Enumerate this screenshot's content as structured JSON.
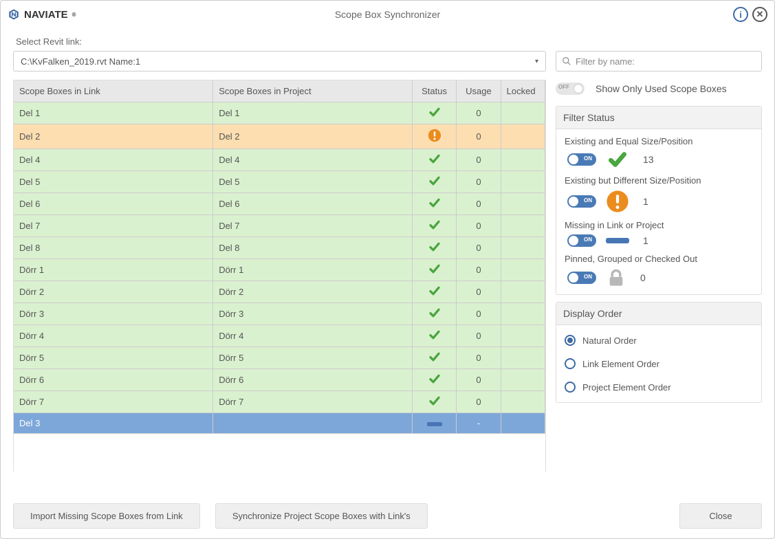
{
  "header": {
    "brand": "NAVIATE",
    "title": "Scope Box Synchronizer"
  },
  "leftPanel": {
    "selectLabel": "Select Revit link:",
    "linkValue": "C:\\KvFalken_2019.rvt Name:1",
    "columns": {
      "link": "Scope Boxes in Link",
      "project": "Scope Boxes in Project",
      "status": "Status",
      "usage": "Usage",
      "locked": "Locked"
    },
    "rows": [
      {
        "link": "Del 1",
        "project": "Del 1",
        "status": "ok",
        "usage": "0",
        "locked": "",
        "cls": "row-ok"
      },
      {
        "link": "Del 2",
        "project": "Del 2",
        "status": "warn",
        "usage": "0",
        "locked": "",
        "cls": "row-warn"
      },
      {
        "link": "Del 4",
        "project": "Del 4",
        "status": "ok",
        "usage": "0",
        "locked": "",
        "cls": "row-ok"
      },
      {
        "link": "Del 5",
        "project": "Del 5",
        "status": "ok",
        "usage": "0",
        "locked": "",
        "cls": "row-ok"
      },
      {
        "link": "Del 6",
        "project": "Del 6",
        "status": "ok",
        "usage": "0",
        "locked": "",
        "cls": "row-ok"
      },
      {
        "link": "Del 7",
        "project": "Del 7",
        "status": "ok",
        "usage": "0",
        "locked": "",
        "cls": "row-ok"
      },
      {
        "link": "Del 8",
        "project": "Del 8",
        "status": "ok",
        "usage": "0",
        "locked": "",
        "cls": "row-ok"
      },
      {
        "link": "Dörr 1",
        "project": "Dörr 1",
        "status": "ok",
        "usage": "0",
        "locked": "",
        "cls": "row-ok"
      },
      {
        "link": "Dörr 2",
        "project": "Dörr 2",
        "status": "ok",
        "usage": "0",
        "locked": "",
        "cls": "row-ok"
      },
      {
        "link": "Dörr 3",
        "project": "Dörr 3",
        "status": "ok",
        "usage": "0",
        "locked": "",
        "cls": "row-ok"
      },
      {
        "link": "Dörr 4",
        "project": "Dörr 4",
        "status": "ok",
        "usage": "0",
        "locked": "",
        "cls": "row-ok"
      },
      {
        "link": "Dörr 5",
        "project": "Dörr 5",
        "status": "ok",
        "usage": "0",
        "locked": "",
        "cls": "row-ok"
      },
      {
        "link": "Dörr 6",
        "project": "Dörr 6",
        "status": "ok",
        "usage": "0",
        "locked": "",
        "cls": "row-ok"
      },
      {
        "link": "Dörr 7",
        "project": "Dörr 7",
        "status": "ok",
        "usage": "0",
        "locked": "",
        "cls": "row-ok"
      },
      {
        "link": "Del 3",
        "project": "",
        "status": "missing",
        "usage": "-",
        "locked": "",
        "cls": "row-missing"
      }
    ]
  },
  "rightPanel": {
    "searchPlaceholder": "Filter by name:",
    "showUsedLabel": "Show Only Used Scope Boxes",
    "filterStatus": {
      "header": "Filter Status",
      "equal": {
        "label": "Existing and Equal Size/Position",
        "count": "13"
      },
      "different": {
        "label": "Existing but Different Size/Position",
        "count": "1"
      },
      "missing": {
        "label": "Missing in Link or Project",
        "count": "1"
      },
      "locked": {
        "label": "Pinned, Grouped or Checked Out",
        "count": "0"
      }
    },
    "displayOrder": {
      "header": "Display Order",
      "opts": {
        "natural": "Natural Order",
        "link": "Link Element Order",
        "project": "Project Element Order"
      }
    }
  },
  "footer": {
    "import": "Import Missing Scope Boxes from Link",
    "sync": "Synchronize Project Scope Boxes with Link's",
    "close": "Close"
  },
  "colors": {
    "okGreen": "#4aa63f",
    "warnOrange": "#eb8c1e",
    "missingBlue": "#4876b5",
    "lockGray": "#b8b8b8",
    "brandBlue": "#3d6aa3"
  }
}
